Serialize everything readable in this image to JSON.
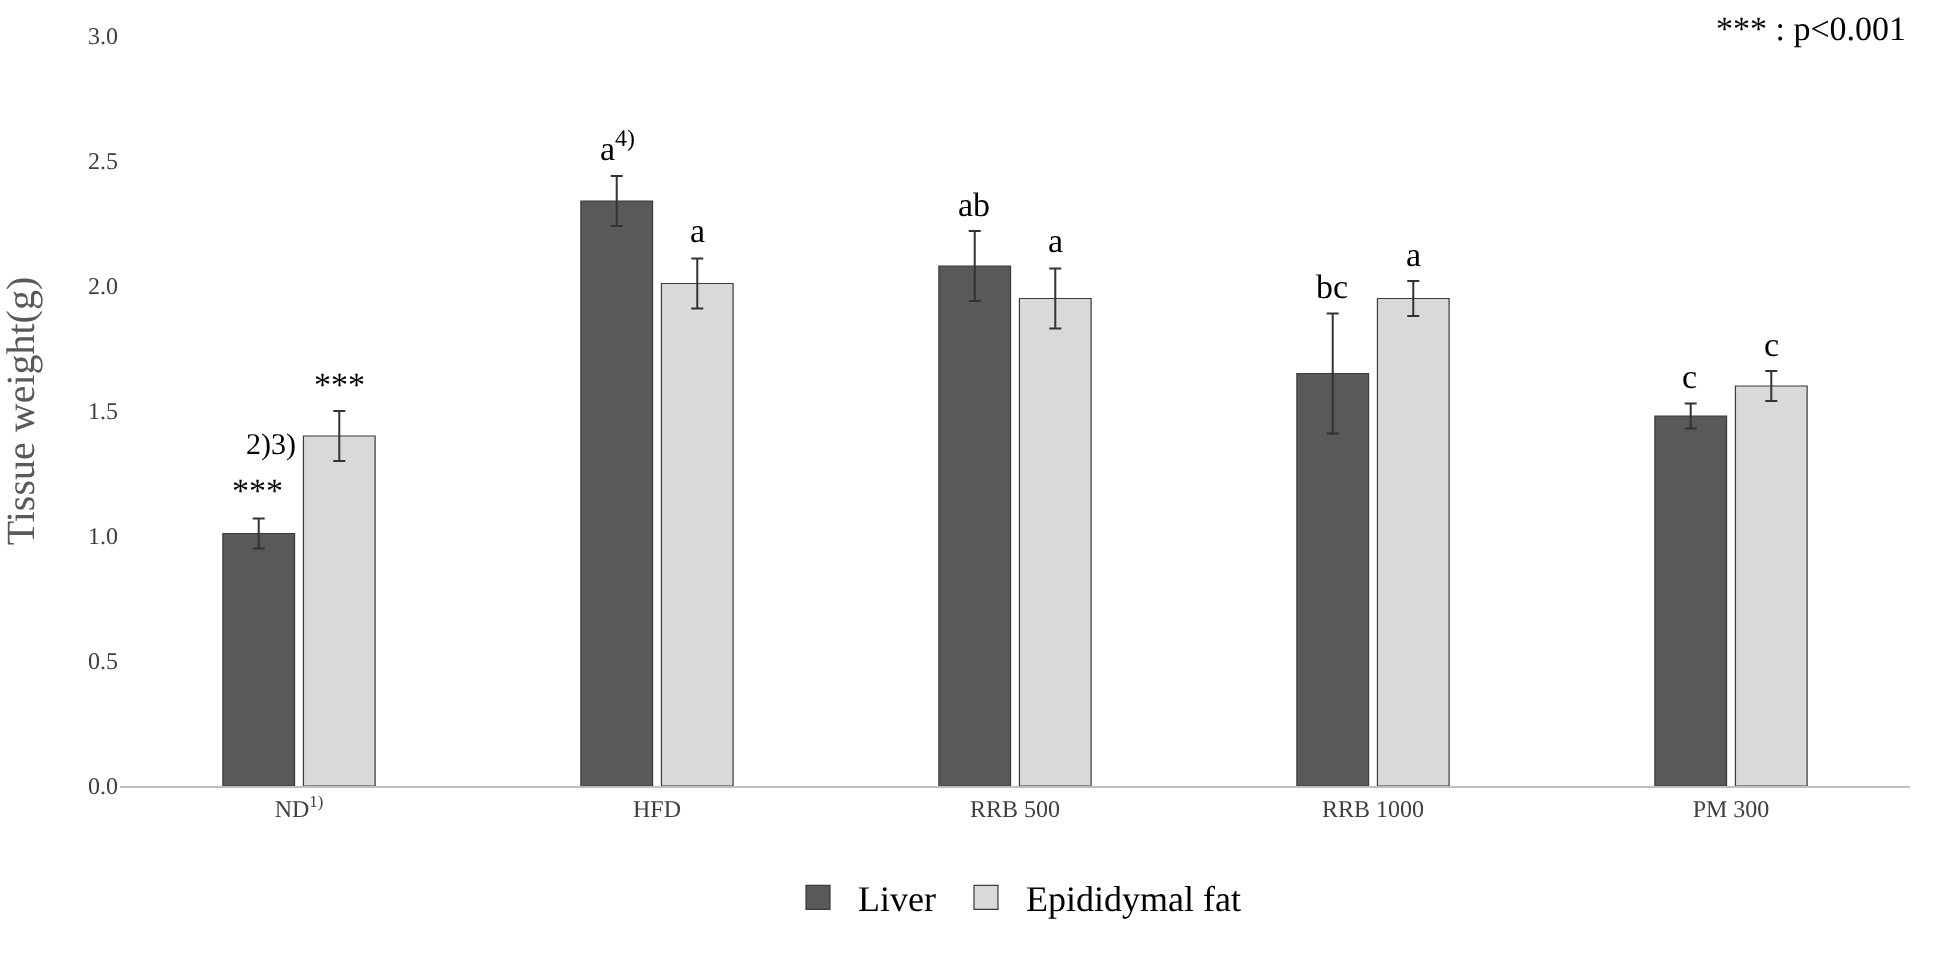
{
  "chart_data": {
    "type": "bar",
    "ylabel": "Tissue weight(g)",
    "categories": [
      "ND$^{1)}$",
      "HFD",
      "RRB 500",
      "RRB 1000",
      "PM 300"
    ],
    "series": [
      {
        "name": "Liver",
        "color": "#595959",
        "values": [
          1.01,
          2.34,
          2.08,
          1.65,
          1.48
        ],
        "errors": [
          0.06,
          0.1,
          0.14,
          0.24,
          0.05
        ]
      },
      {
        "name": "Epididymal fat",
        "color": "#d9d9d9",
        "values": [
          1.4,
          2.01,
          1.95,
          1.95,
          1.6
        ],
        "errors": [
          0.1,
          0.1,
          0.12,
          0.07,
          0.06
        ]
      }
    ],
    "ylim": [
      0,
      3
    ],
    "yticks": [
      {
        "value": 0,
        "label": "0.0"
      },
      {
        "value": 0.5,
        "label": "0.5"
      },
      {
        "value": 1,
        "label": "1.0"
      },
      {
        "value": 1.5,
        "label": "1.5"
      },
      {
        "value": 2,
        "label": "2.0"
      },
      {
        "value": 2.5,
        "label": "2.5"
      },
      {
        "value": 3,
        "label": "3.0"
      }
    ],
    "grid": false,
    "legend": "bottom",
    "annotations": [
      "*** : p<0.001",
      {
        "text": "***",
        "x": "ND$^{1)}$",
        "y": 1.01
      },
      {
        "text": "***",
        "x": "ND$^{1)}$",
        "y": 1.4
      },
      {
        "text": "2)3)",
        "x": "ND$^{1)}$",
        "y": 1.36
      },
      {
        "text": "a$^{4)}$",
        "x": "HFD",
        "y": 2.34
      },
      {
        "text": "a",
        "x": "HFD",
        "y": 2.01
      },
      {
        "text": "ab",
        "x": "RRB 500",
        "y": 2.08
      },
      {
        "text": "a",
        "x": "RRB 500",
        "y": 1.95
      },
      {
        "text": "bc",
        "x": "RRB 1000",
        "y": 1.65
      },
      {
        "text": "a",
        "x": "RRB 1000",
        "y": 1.95
      },
      {
        "text": "c",
        "x": "PM 300",
        "y": 1.48
      },
      {
        "text": "c",
        "x": "PM 300",
        "y": 1.6
      }
    ]
  }
}
